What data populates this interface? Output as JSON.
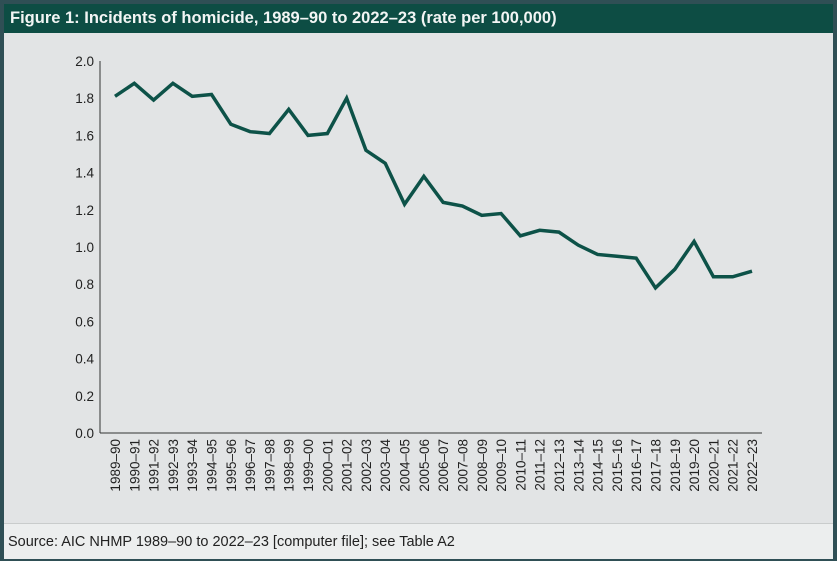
{
  "chart_data": {
    "type": "line",
    "title": "Figure 1: Incidents of homicide, 1989–90 to 2022–23 (rate per 100,000)",
    "source": "Source: AIC NHMP 1989–90 to 2022–23 [computer file]; see Table A2",
    "xlabel": "",
    "ylabel": "",
    "ylim": [
      0,
      2.0
    ],
    "yticks": [
      "0.0",
      "0.2",
      "0.4",
      "0.6",
      "0.8",
      "1.0",
      "1.2",
      "1.4",
      "1.6",
      "1.8",
      "2.0"
    ],
    "grid": false,
    "line_color": "#0d5248",
    "categories": [
      "1989–90",
      "1990–91",
      "1991–92",
      "1992–93",
      "1993–94",
      "1994–95",
      "1995–96",
      "1996–97",
      "1997–98",
      "1998–99",
      "1999–00",
      "2000–01",
      "2001–02",
      "2002–03",
      "2003–04",
      "2004–05",
      "2005–06",
      "2006–07",
      "2007–08",
      "2008–09",
      "2009–10",
      "2010–11",
      "2011–12",
      "2012–13",
      "2013–14",
      "2014–15",
      "2015–16",
      "2016–17",
      "2017–18",
      "2018–19",
      "2019–20",
      "2020–21",
      "2021–22",
      "2022–23"
    ],
    "values": [
      1.81,
      1.88,
      1.79,
      1.88,
      1.81,
      1.82,
      1.66,
      1.62,
      1.61,
      1.74,
      1.6,
      1.61,
      1.8,
      1.52,
      1.45,
      1.23,
      1.38,
      1.24,
      1.22,
      1.17,
      1.18,
      1.06,
      1.09,
      1.08,
      1.01,
      0.96,
      0.95,
      0.94,
      0.78,
      0.88,
      1.03,
      0.84,
      0.84,
      0.87
    ]
  }
}
